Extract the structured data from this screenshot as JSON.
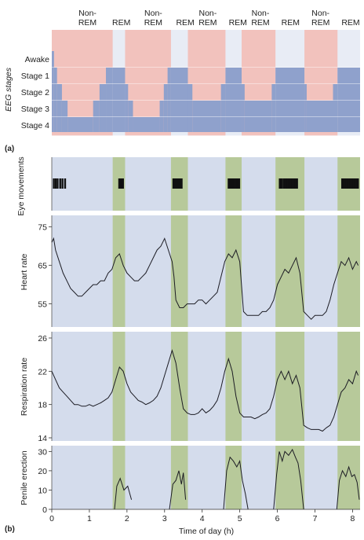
{
  "chart_data": [
    {
      "type": "step",
      "panel": "a",
      "ylabel": "EEG stages",
      "top_labels": [
        {
          "x": 0.95,
          "lines": [
            "Non-",
            "REM"
          ]
        },
        {
          "x": 1.85,
          "lines": [
            "REM"
          ]
        },
        {
          "x": 2.7,
          "lines": [
            "Non-",
            "REM"
          ]
        },
        {
          "x": 3.55,
          "lines": [
            "REM"
          ]
        },
        {
          "x": 4.15,
          "lines": [
            "Non-",
            "REM"
          ]
        },
        {
          "x": 4.95,
          "lines": [
            "REM"
          ]
        },
        {
          "x": 5.55,
          "lines": [
            "Non-",
            "REM"
          ]
        },
        {
          "x": 6.35,
          "lines": [
            "REM"
          ]
        },
        {
          "x": 7.15,
          "lines": [
            "Non-",
            "REM"
          ]
        },
        {
          "x": 7.95,
          "lines": [
            "REM"
          ]
        }
      ],
      "stage_labels": [
        "Awake",
        "Stage 1",
        "Stage 2",
        "Stage 3",
        "Stage 4"
      ],
      "nonrem_blocks": [
        [
          0.0,
          1.62
        ],
        [
          1.95,
          3.17
        ],
        [
          3.62,
          4.62
        ],
        [
          5.05,
          5.95
        ],
        [
          6.72,
          7.6
        ]
      ],
      "hypnogram": [
        [
          0.0,
          0
        ],
        [
          0.06,
          1
        ],
        [
          0.14,
          2
        ],
        [
          0.27,
          3
        ],
        [
          0.42,
          4
        ],
        [
          1.1,
          3
        ],
        [
          1.27,
          2
        ],
        [
          1.44,
          1
        ],
        [
          1.62,
          1
        ],
        [
          1.95,
          2
        ],
        [
          2.03,
          3
        ],
        [
          2.16,
          4
        ],
        [
          2.87,
          3
        ],
        [
          2.98,
          2
        ],
        [
          3.08,
          1
        ],
        [
          3.17,
          1
        ],
        [
          3.62,
          2
        ],
        [
          3.74,
          3
        ],
        [
          4.5,
          2
        ],
        [
          4.62,
          1
        ],
        [
          5.05,
          2
        ],
        [
          5.13,
          3
        ],
        [
          5.85,
          2
        ],
        [
          5.95,
          1
        ],
        [
          6.72,
          2
        ],
        [
          6.78,
          3
        ],
        [
          7.48,
          2
        ],
        [
          7.6,
          1
        ],
        [
          8.2,
          1
        ]
      ]
    },
    {
      "type": "event",
      "panel": "eye",
      "ylabel": "Eye movements",
      "rem_periods": [
        [
          1.62,
          1.95
        ],
        [
          3.17,
          3.62
        ],
        [
          4.62,
          5.05
        ],
        [
          5.95,
          6.72
        ],
        [
          7.6,
          8.2
        ]
      ],
      "marks": [
        0.05,
        0.1,
        0.15,
        0.22,
        0.28,
        0.35,
        1.79,
        1.81,
        1.83,
        1.85,
        1.87,
        1.89,
        3.23,
        3.25,
        3.27,
        3.29,
        3.31,
        3.33,
        3.35,
        3.37,
        3.39,
        3.41,
        3.43,
        3.45,
        4.7,
        4.72,
        4.74,
        4.76,
        4.78,
        4.8,
        4.82,
        4.84,
        4.86,
        4.88,
        4.9,
        4.93,
        4.95,
        4.98,
        6.06,
        6.09,
        6.11,
        6.16,
        6.2,
        6.24,
        6.28,
        6.32,
        6.36,
        6.4,
        6.44,
        6.48,
        6.52,
        7.72,
        7.74,
        7.78,
        7.8,
        7.84,
        7.88,
        7.9,
        7.94,
        7.98,
        8.02,
        8.06,
        8.1,
        8.14
      ]
    },
    {
      "type": "line",
      "panel": "heart",
      "ylabel": "Heart rate",
      "ylim": [
        49,
        78
      ],
      "yticks": [
        55,
        65,
        75
      ],
      "x": [
        0,
        0.05,
        0.1,
        0.2,
        0.3,
        0.4,
        0.5,
        0.6,
        0.7,
        0.8,
        0.9,
        1.0,
        1.1,
        1.2,
        1.3,
        1.4,
        1.5,
        1.6,
        1.7,
        1.8,
        1.9,
        2.0,
        2.1,
        2.2,
        2.3,
        2.4,
        2.5,
        2.6,
        2.7,
        2.8,
        2.9,
        3.0,
        3.1,
        3.2,
        3.25,
        3.3,
        3.4,
        3.5,
        3.6,
        3.7,
        3.8,
        3.9,
        4.0,
        4.1,
        4.2,
        4.3,
        4.4,
        4.5,
        4.6,
        4.7,
        4.8,
        4.9,
        5.0,
        5.1,
        5.2,
        5.3,
        5.4,
        5.5,
        5.6,
        5.7,
        5.8,
        5.9,
        6.0,
        6.1,
        6.2,
        6.3,
        6.4,
        6.5,
        6.6,
        6.7,
        6.8,
        6.9,
        7.0,
        7.1,
        7.2,
        7.3,
        7.4,
        7.5,
        7.6,
        7.7,
        7.8,
        7.9,
        8.0,
        8.1,
        8.15
      ],
      "values": [
        71,
        72,
        69,
        66,
        63,
        61,
        59,
        58,
        57,
        57,
        58,
        59,
        60,
        60,
        61,
        61,
        63,
        64,
        67,
        68,
        65,
        63,
        62,
        61,
        61,
        62,
        63,
        65,
        67,
        69,
        70,
        72,
        69,
        66,
        62,
        56,
        54,
        54,
        55,
        55,
        55,
        56,
        56,
        55,
        56,
        57,
        58,
        62,
        66,
        68,
        67,
        69,
        66,
        53,
        52,
        52,
        52,
        52,
        53,
        53,
        54,
        56,
        60,
        62,
        64,
        63,
        65,
        67,
        63,
        53,
        52,
        51,
        52,
        52,
        52,
        53,
        56,
        60,
        63,
        66,
        65,
        67,
        64,
        66,
        65
      ]
    },
    {
      "type": "line",
      "panel": "resp",
      "ylabel": "Respiration rate",
      "ylim": [
        14,
        26
      ],
      "yticks": [
        14,
        18,
        22,
        26
      ],
      "x": [
        0,
        0.1,
        0.2,
        0.3,
        0.4,
        0.5,
        0.6,
        0.7,
        0.8,
        0.9,
        1.0,
        1.1,
        1.2,
        1.3,
        1.4,
        1.5,
        1.6,
        1.7,
        1.8,
        1.9,
        2.0,
        2.1,
        2.2,
        2.3,
        2.4,
        2.5,
        2.6,
        2.7,
        2.8,
        2.9,
        3.0,
        3.1,
        3.2,
        3.3,
        3.4,
        3.5,
        3.6,
        3.7,
        3.8,
        3.9,
        4.0,
        4.1,
        4.2,
        4.3,
        4.4,
        4.5,
        4.6,
        4.7,
        4.8,
        4.9,
        5.0,
        5.1,
        5.2,
        5.3,
        5.4,
        5.5,
        5.6,
        5.7,
        5.8,
        5.9,
        6.0,
        6.1,
        6.2,
        6.3,
        6.4,
        6.5,
        6.6,
        6.7,
        6.8,
        6.9,
        7.0,
        7.1,
        7.2,
        7.3,
        7.4,
        7.5,
        7.6,
        7.7,
        7.8,
        7.9,
        8.0,
        8.1,
        8.15
      ],
      "values": [
        22,
        21,
        20,
        19.5,
        19,
        18.5,
        18,
        18,
        17.8,
        17.8,
        18,
        17.8,
        18,
        18.2,
        18.5,
        18.8,
        19.5,
        21,
        22.5,
        22,
        20.5,
        19.5,
        19,
        18.5,
        18.3,
        18,
        18.2,
        18.5,
        19,
        20,
        21.5,
        23,
        24.5,
        23,
        20,
        17.5,
        17,
        16.8,
        16.8,
        17,
        17.5,
        17,
        17.3,
        17.8,
        18.5,
        20,
        22,
        23.5,
        22,
        19,
        17,
        16.5,
        16.5,
        16.5,
        16.3,
        16.5,
        16.8,
        17,
        17.5,
        19,
        21,
        22,
        21,
        22,
        20.5,
        21.5,
        20,
        15.5,
        15.2,
        15,
        15,
        15,
        14.8,
        15.2,
        15.5,
        16.5,
        18,
        19.5,
        20,
        21,
        20.5,
        22,
        21.5
      ]
    },
    {
      "type": "line",
      "panel": "b",
      "ylabel": "Penile erection",
      "xlabel": "Time of day (h)",
      "ylim": [
        0,
        33
      ],
      "yticks": [
        0,
        10,
        20,
        30
      ],
      "xlim": [
        0,
        8.2
      ],
      "xticks": [
        0,
        1,
        2,
        3,
        4,
        5,
        6,
        7,
        8
      ],
      "segments": [
        {
          "x": [
            1.67,
            1.73,
            1.82,
            1.92,
            2.02,
            2.12
          ],
          "values": [
            0,
            12,
            16,
            10,
            12,
            5
          ]
        },
        {
          "x": [
            3.13,
            3.22,
            3.3,
            3.38,
            3.45,
            3.5,
            3.56
          ],
          "values": [
            0,
            13,
            15,
            20,
            13,
            19,
            5
          ]
        },
        {
          "x": [
            4.57,
            4.65,
            4.74,
            4.83,
            4.92,
            5.0,
            5.07,
            5.15,
            5.22
          ],
          "values": [
            0,
            20,
            27,
            25,
            22,
            25,
            15,
            8,
            0
          ]
        },
        {
          "x": [
            5.9,
            5.98,
            6.05,
            6.13,
            6.2,
            6.3,
            6.4,
            6.48,
            6.55,
            6.62,
            6.7
          ],
          "values": [
            0,
            18,
            30,
            25,
            30,
            28,
            31,
            27,
            24,
            15,
            0
          ]
        },
        {
          "x": [
            7.58,
            7.65,
            7.73,
            7.82,
            7.9,
            7.98,
            8.05,
            8.12,
            8.18
          ],
          "values": [
            0,
            15,
            20,
            17,
            22,
            17,
            18,
            14,
            5
          ]
        }
      ]
    }
  ],
  "colors": {
    "pink": "#f2c2bd",
    "stage_blue": "#8fa1cc",
    "panel_bg": "#d4dcec",
    "rem_green": "#b7c99a",
    "line": "#1c1c24"
  }
}
